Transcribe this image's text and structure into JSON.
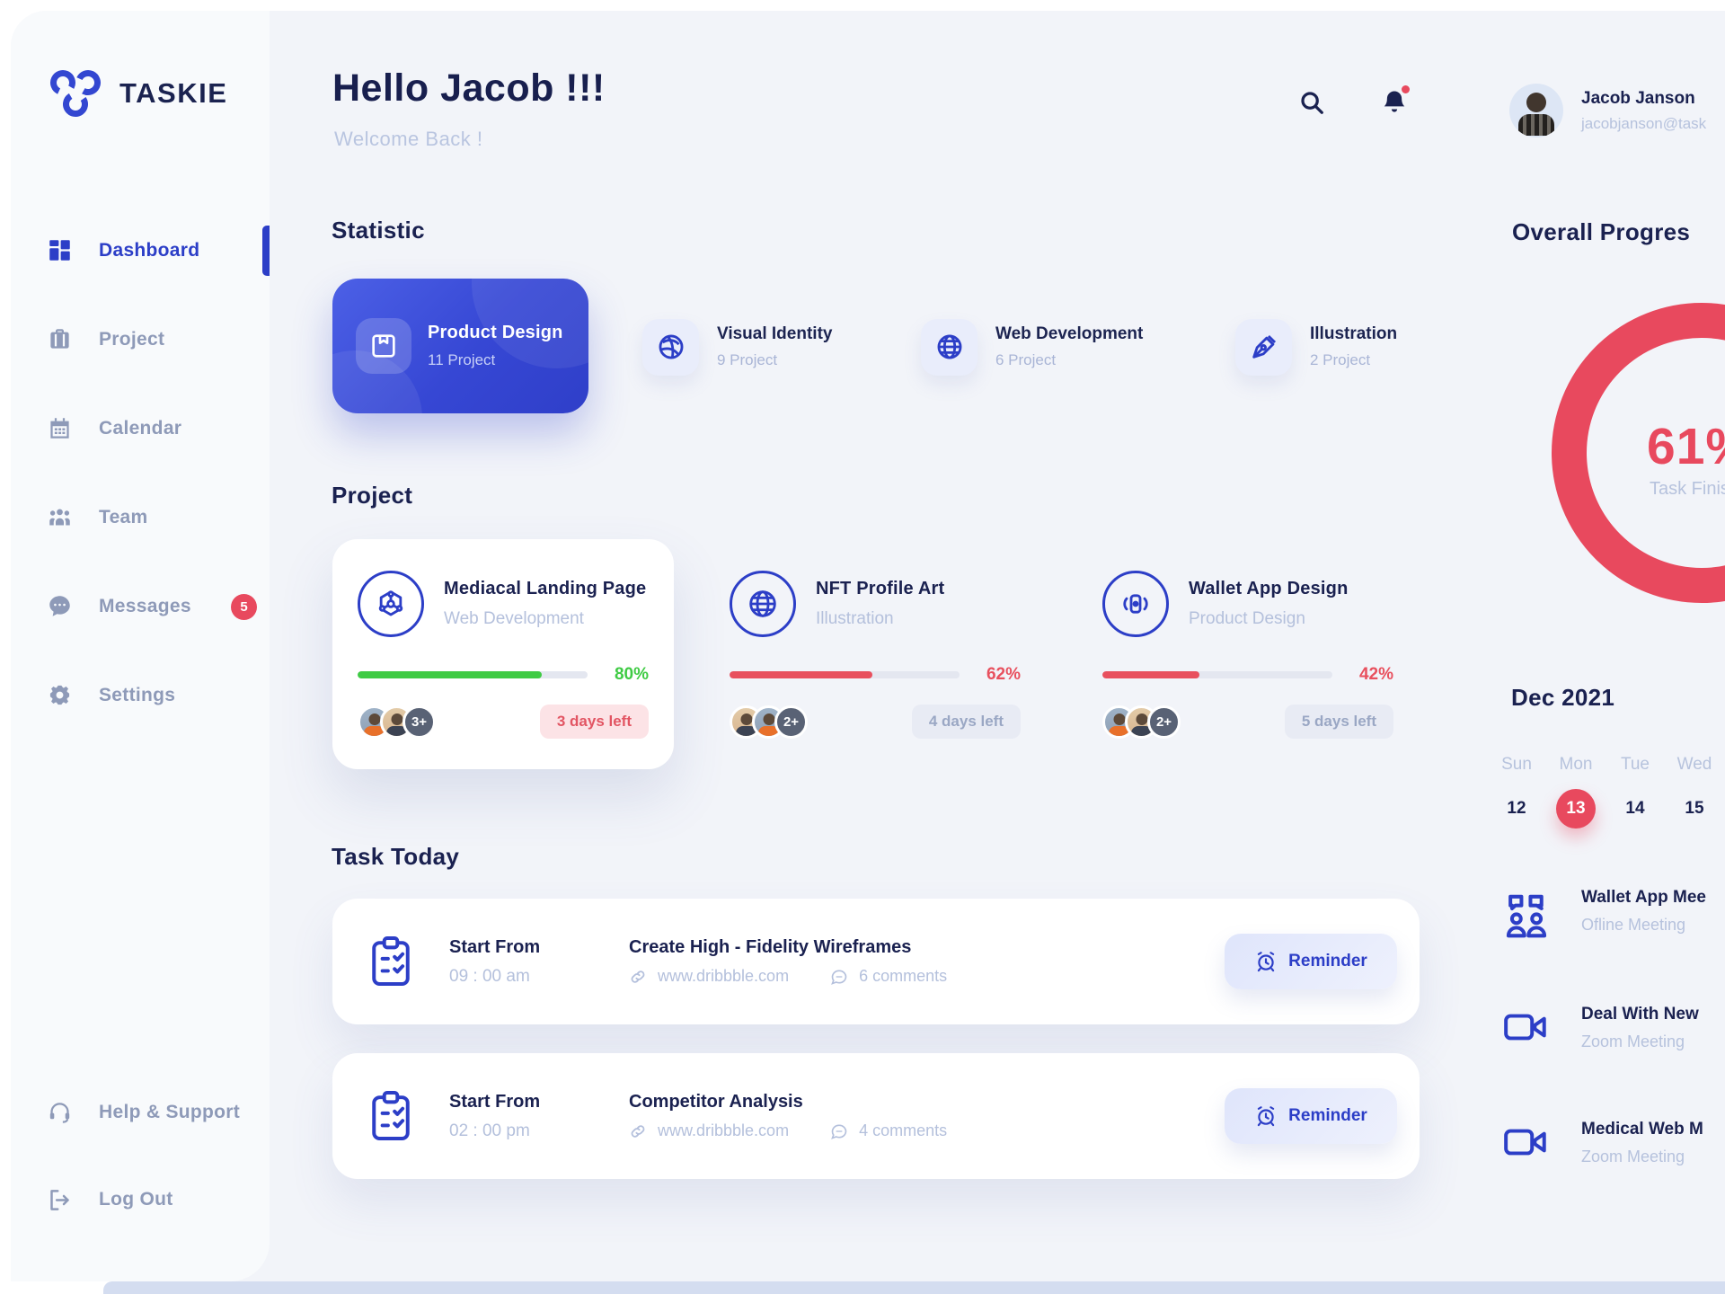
{
  "brand": {
    "name": "TASKIE"
  },
  "sidebar": {
    "items": [
      {
        "label": "Dashboard"
      },
      {
        "label": "Project"
      },
      {
        "label": "Calendar"
      },
      {
        "label": "Team"
      },
      {
        "label": "Messages",
        "badge": "5"
      },
      {
        "label": "Settings"
      }
    ],
    "footer": [
      {
        "label": "Help & Support"
      },
      {
        "label": "Log Out"
      }
    ]
  },
  "header": {
    "greeting": "Hello Jacob !!!",
    "subtitle": "Welcome Back !"
  },
  "statistic": {
    "title": "Statistic",
    "cards": [
      {
        "title": "Product Design",
        "count": "11 Project"
      },
      {
        "title": "Visual Identity",
        "count": "9 Project"
      },
      {
        "title": "Web Development",
        "count": "6 Project"
      },
      {
        "title": "Illustration",
        "count": "2 Project"
      }
    ]
  },
  "projects": {
    "title": "Project",
    "cards": [
      {
        "title": "Mediacal Landing Page",
        "category": "Web Development",
        "progress": 80,
        "progress_label": "80%",
        "days_left": "3 days left",
        "extra_members": "3+"
      },
      {
        "title": "NFT Profile Art",
        "category": "Illustration",
        "progress": 62,
        "progress_label": "62%",
        "days_left": "4 days left",
        "extra_members": "2+"
      },
      {
        "title": "Wallet App Design",
        "category": "Product Design",
        "progress": 42,
        "progress_label": "42%",
        "days_left": "5 days left",
        "extra_members": "2+"
      }
    ]
  },
  "tasks": {
    "title": "Task Today",
    "reminder_label": "Reminder",
    "items": [
      {
        "start_label": "Start From",
        "time": "09 : 00 am",
        "name": "Create High - Fidelity Wireframes",
        "link": "www.dribbble.com",
        "comments": "6 comments"
      },
      {
        "start_label": "Start From",
        "time": "02 : 00 pm",
        "name": "Competitor Analysis",
        "link": "www.dribbble.com",
        "comments": "4 comments"
      }
    ]
  },
  "profile": {
    "name": "Jacob Janson",
    "email": "jacobjanson@task"
  },
  "overall": {
    "title": "Overall Progres",
    "percent": "61%",
    "caption": "Task Finis"
  },
  "calendar": {
    "month": "Dec 2021",
    "day_names": [
      "Sun",
      "Mon",
      "Tue",
      "Wed"
    ],
    "dates": [
      "12",
      "13",
      "14",
      "15"
    ],
    "selected_date": "13"
  },
  "meetings": [
    {
      "title": "Wallet App Mee",
      "subtitle": "Ofline Meeting"
    },
    {
      "title": "Deal With New",
      "subtitle": "Zoom Meeting"
    },
    {
      "title": "Medical Web M",
      "subtitle": "Zoom Meeting"
    }
  ],
  "colors": {
    "primary": "#2c3ec7",
    "accent_red": "#e8495e",
    "green": "#3fcb44",
    "dark": "#1a2150",
    "muted": "#b6c2dd"
  }
}
